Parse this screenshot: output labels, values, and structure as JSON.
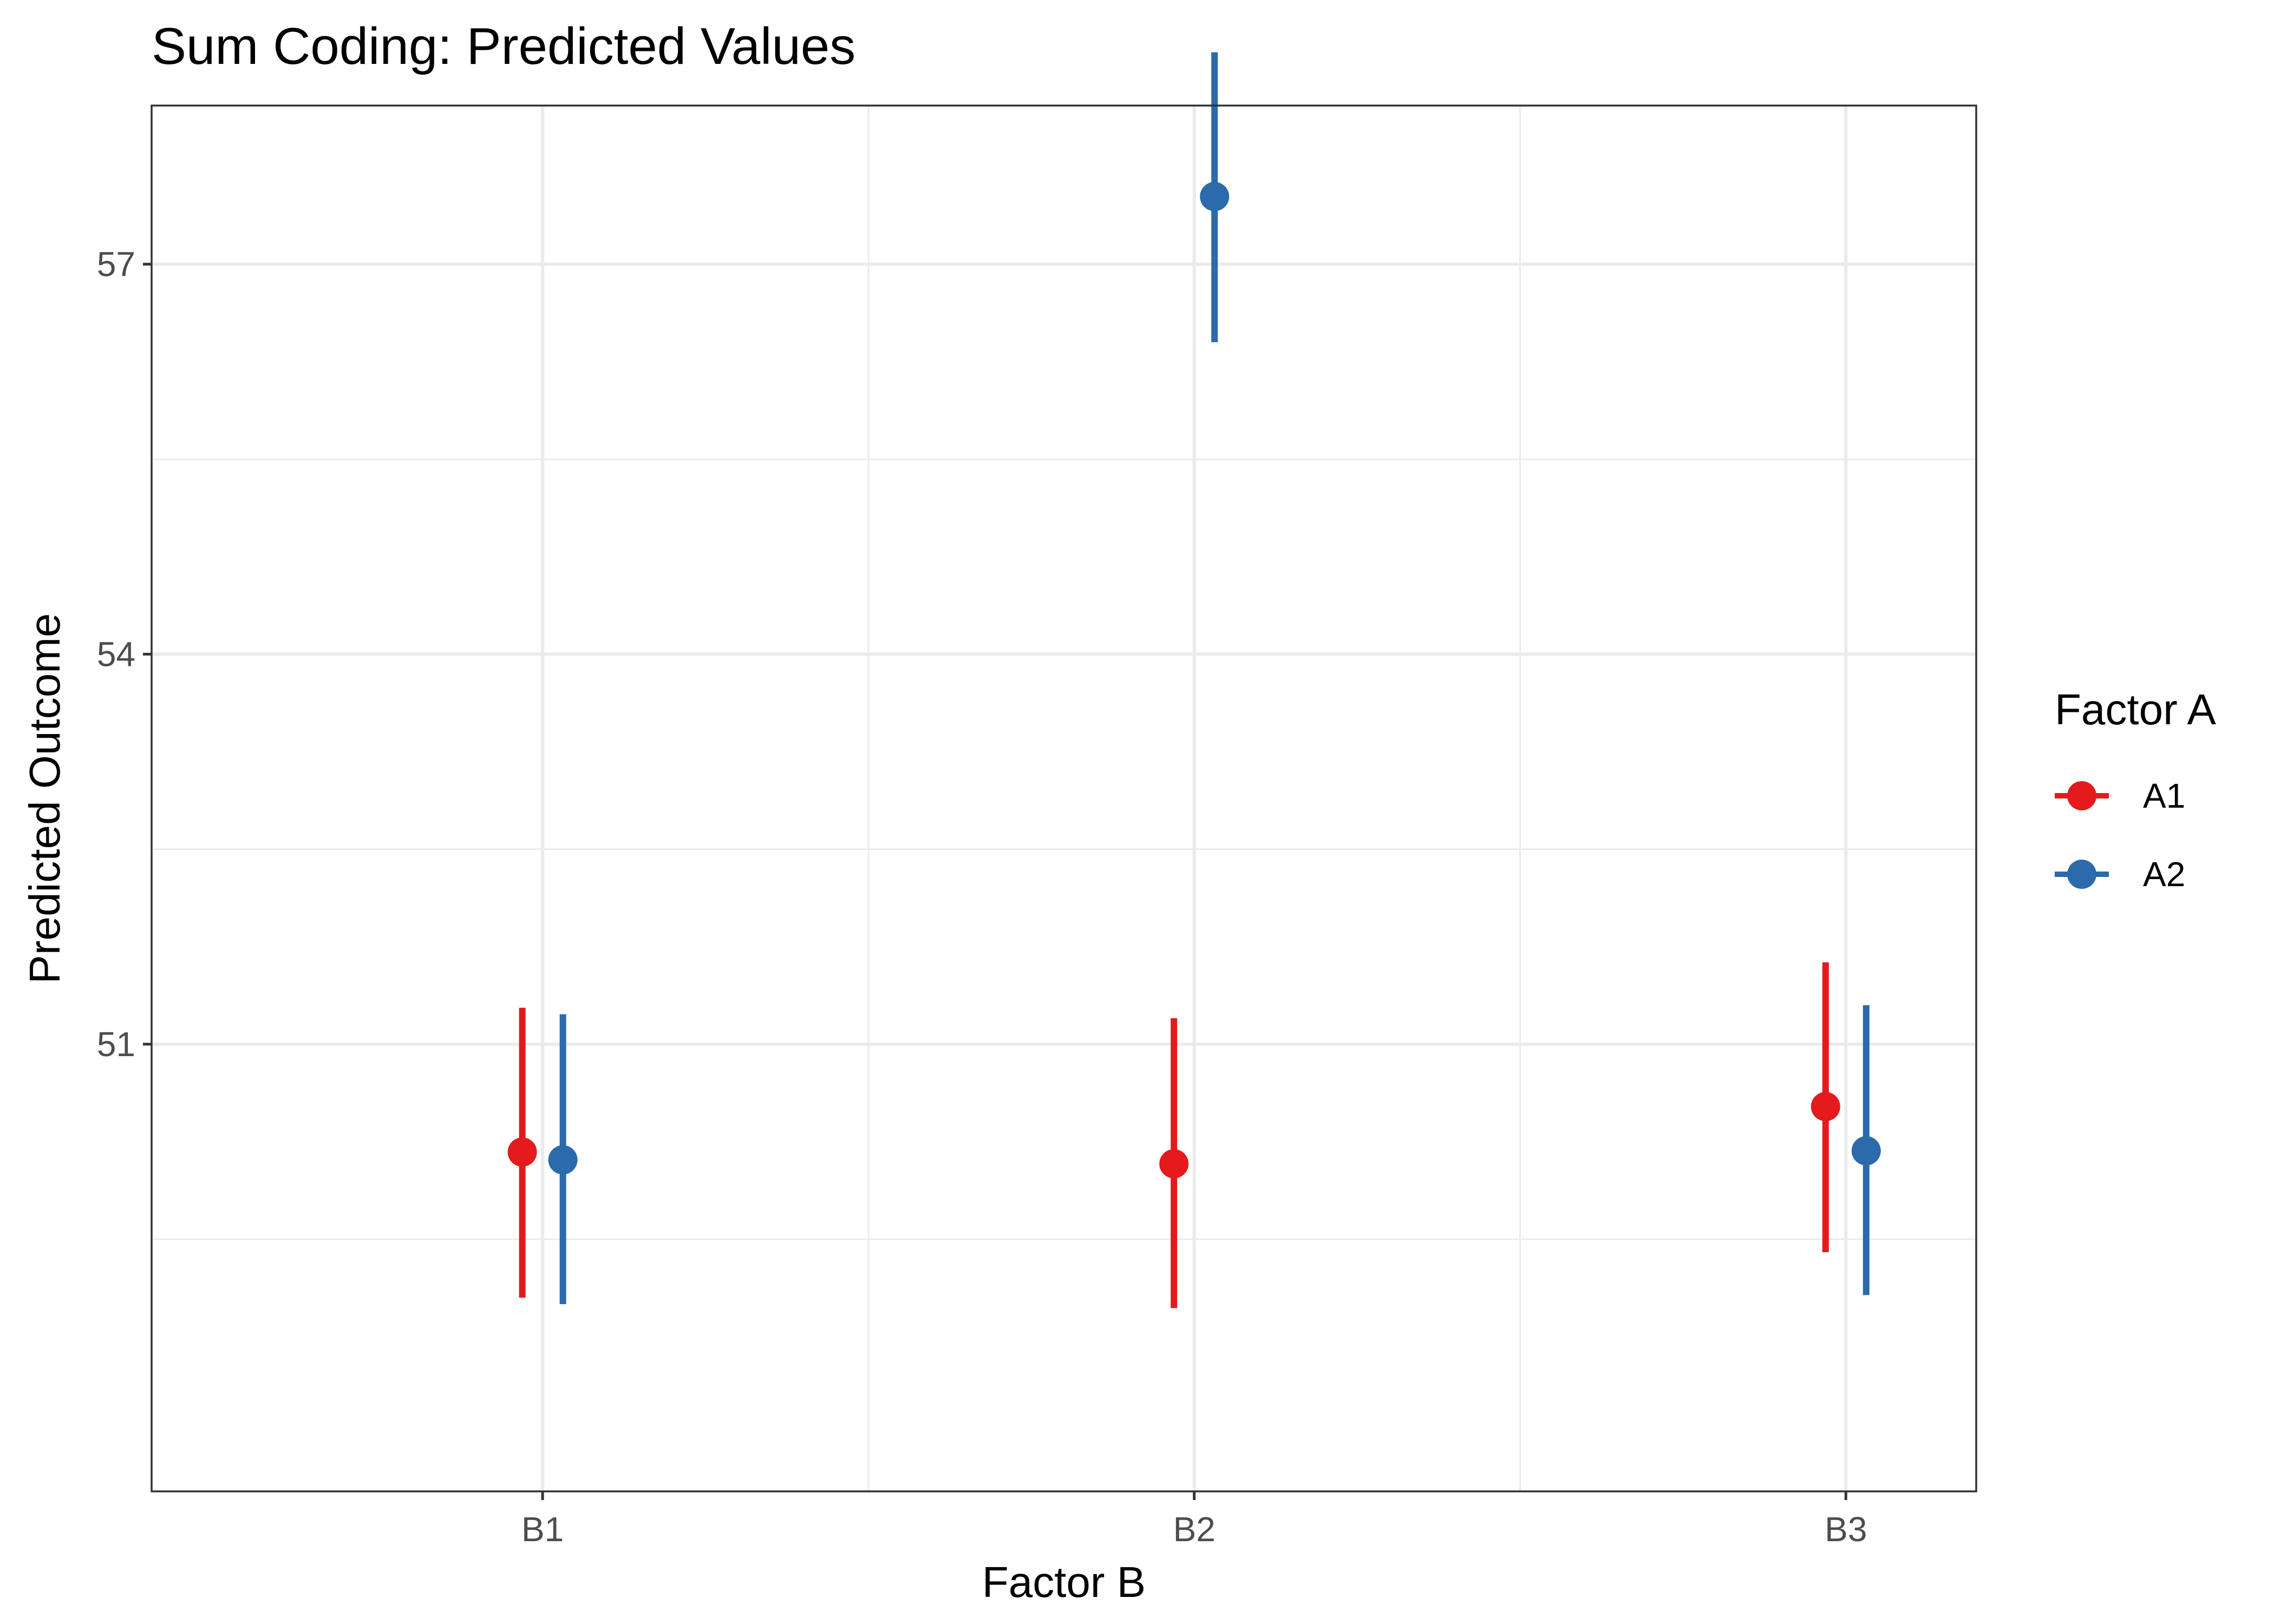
{
  "chart_data": {
    "type": "scatter",
    "title": "Sum Coding: Predicted Values",
    "xlabel": "Factor B",
    "ylabel": "Predicted Outcome",
    "categories": [
      "B1",
      "B2",
      "B3"
    ],
    "ylim": [
      47.56,
      58.22
    ],
    "yticks": [
      51,
      54,
      57
    ],
    "grid": true,
    "legend": {
      "title": "Factor A",
      "position": "right"
    },
    "series": [
      {
        "name": "A1",
        "color": "#e41a1c",
        "points": [
          {
            "category": "B1",
            "value": 50.17,
            "lower": 49.05,
            "upper": 51.28
          },
          {
            "category": "B2",
            "value": 50.08,
            "lower": 48.97,
            "upper": 51.2
          },
          {
            "category": "B3",
            "value": 50.52,
            "lower": 49.4,
            "upper": 51.63
          }
        ]
      },
      {
        "name": "A2",
        "color": "#2b6aab",
        "points": [
          {
            "category": "B1",
            "value": 50.11,
            "lower": 49.0,
            "upper": 51.23
          },
          {
            "category": "B2",
            "value": 57.52,
            "lower": 56.4,
            "upper": 58.63
          },
          {
            "category": "B3",
            "value": 50.18,
            "lower": 49.07,
            "upper": 51.3
          }
        ]
      }
    ]
  }
}
